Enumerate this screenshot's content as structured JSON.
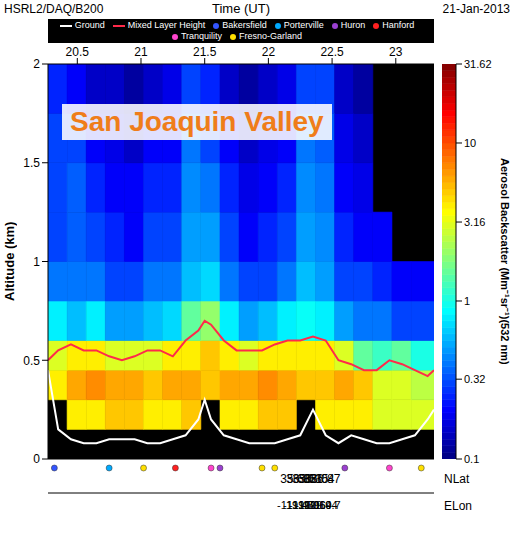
{
  "chart_data": {
    "type": "heatmap",
    "title": "San Joaquin Valley",
    "instrument": "HSRL2/DAQ/B200",
    "date": "21-Jan-2013",
    "xlabel": "Time (UT)",
    "ylabel": "Altitude (km)",
    "xlim": [
      20.27,
      23.3
    ],
    "xticks": [
      20.5,
      21,
      21.5,
      22,
      22.5,
      23
    ],
    "ylim": [
      0,
      2
    ],
    "yticks": [
      0,
      0.5,
      1,
      1.5,
      2
    ],
    "lat_label": "NLat",
    "lat": [
      35.68,
      36.82,
      35.51,
      36.35,
      36.04,
      36.87
    ],
    "lon_label": "ELon",
    "lon": [
      -119.47,
      -119.69,
      -119.06,
      -119.64,
      -119.04,
      -119.7
    ],
    "legend": "top",
    "heatmap": {
      "x_edges": [
        20.27,
        20.42,
        20.57,
        20.72,
        20.87,
        21.02,
        21.17,
        21.32,
        21.47,
        21.62,
        21.77,
        21.92,
        22.07,
        22.22,
        22.37,
        22.52,
        22.67,
        22.82,
        22.97,
        23.12,
        23.3
      ],
      "y_edges": [
        0,
        0.15,
        0.3,
        0.45,
        0.6,
        0.8,
        1.0,
        1.25,
        1.5,
        1.75,
        2.0
      ],
      "values": [
        [
          null,
          null,
          null,
          null,
          null,
          null,
          null,
          null,
          null,
          null,
          null,
          null,
          null,
          null,
          null,
          null,
          null,
          null,
          null,
          null
        ],
        [
          null,
          4,
          4,
          5,
          5,
          4,
          4,
          5,
          null,
          4,
          4,
          5,
          5,
          null,
          4,
          4,
          4,
          3,
          3,
          3
        ],
        [
          4,
          6,
          7,
          6,
          6,
          5,
          6,
          6,
          5,
          6,
          6,
          7,
          6,
          5,
          5,
          6,
          5,
          3,
          3,
          2.5
        ],
        [
          3,
          4,
          4,
          3,
          3,
          3,
          4,
          4,
          5,
          4,
          3,
          4,
          4,
          4,
          4,
          3,
          1.5,
          1.2,
          1.5,
          1
        ],
        [
          0.8,
          0.6,
          0.8,
          0.5,
          0.5,
          0.6,
          0.7,
          1.5,
          2,
          0.8,
          0.5,
          0.6,
          0.8,
          0.9,
          0.8,
          0.5,
          0.4,
          0.4,
          0.3,
          0.3
        ],
        [
          0.4,
          0.4,
          0.4,
          0.3,
          0.3,
          0.4,
          0.4,
          0.6,
          0.7,
          0.4,
          0.3,
          0.3,
          0.4,
          0.6,
          0.5,
          0.3,
          0.3,
          0.25,
          0.2,
          0.2
        ],
        [
          0.3,
          0.35,
          0.3,
          0.25,
          0.2,
          0.3,
          0.3,
          0.5,
          0.5,
          0.3,
          0.2,
          0.25,
          0.3,
          0.5,
          0.45,
          0.25,
          0.2,
          0.2,
          null,
          null
        ],
        [
          0.3,
          0.35,
          0.25,
          0.2,
          0.2,
          0.25,
          0.25,
          0.45,
          0.4,
          0.25,
          0.18,
          0.2,
          0.25,
          0.45,
          0.4,
          0.2,
          0.18,
          null,
          null,
          null
        ],
        [
          0.3,
          0.3,
          0.2,
          0.18,
          0.15,
          0.2,
          0.2,
          0.4,
          0.3,
          0.2,
          0.15,
          0.18,
          0.2,
          0.4,
          0.35,
          0.18,
          0.15,
          null,
          null,
          null
        ],
        [
          0.25,
          0.2,
          0.15,
          0.15,
          0.12,
          0.15,
          0.18,
          0.3,
          0.25,
          0.15,
          0.12,
          0.15,
          0.18,
          0.3,
          0.3,
          0.15,
          0.12,
          null,
          null,
          null
        ]
      ]
    },
    "colorbar": {
      "label": "Aerosol Backscatter (Mm⁻¹sr⁻¹)(532 nm)",
      "range": [
        0.1,
        31.62
      ],
      "ticks": [
        0.1,
        0.32,
        1,
        3.16,
        10,
        31.62
      ],
      "log": true
    },
    "x": [
      20.27,
      20.35,
      20.45,
      20.55,
      20.65,
      20.75,
      20.85,
      20.95,
      21.05,
      21.15,
      21.25,
      21.35,
      21.45,
      21.5,
      21.55,
      21.65,
      21.75,
      21.85,
      21.95,
      22.05,
      22.15,
      22.25,
      22.35,
      22.45,
      22.55,
      22.65,
      22.75,
      22.85,
      22.95,
      23.05,
      23.15,
      23.25,
      23.3
    ],
    "series": [
      {
        "name": "Ground",
        "type": "line",
        "color": "#ffffff",
        "values": [
          0.45,
          0.15,
          0.1,
          0.08,
          0.08,
          0.1,
          0.1,
          0.1,
          0.08,
          0.08,
          0.1,
          0.12,
          0.2,
          0.3,
          0.2,
          0.12,
          0.1,
          0.08,
          0.08,
          0.08,
          0.1,
          0.12,
          0.25,
          0.12,
          0.08,
          0.12,
          0.1,
          0.08,
          0.08,
          0.1,
          0.12,
          0.2,
          0.25
        ]
      },
      {
        "name": "Mixed Layer Height",
        "type": "line",
        "color": "#ff2a4a",
        "values": [
          0.5,
          0.55,
          0.58,
          0.55,
          0.55,
          0.52,
          0.5,
          0.52,
          0.55,
          0.55,
          0.52,
          0.6,
          0.65,
          0.7,
          0.68,
          0.6,
          0.55,
          0.55,
          0.55,
          0.58,
          0.6,
          0.6,
          0.62,
          0.6,
          0.5,
          0.48,
          0.45,
          0.45,
          0.5,
          0.48,
          0.45,
          0.42,
          0.45
        ]
      }
    ],
    "sites": [
      {
        "name": "Bakersfield",
        "color": "#3355ff",
        "times": [
          20.32
        ]
      },
      {
        "name": "Porterville",
        "color": "#00aaff",
        "times": [
          20.75
        ]
      },
      {
        "name": "Huron",
        "color": "#9b40d0",
        "times": [
          21.62,
          22.6
        ]
      },
      {
        "name": "Hanford",
        "color": "#ff2020",
        "times": [
          21.27
        ]
      },
      {
        "name": "Tranquility",
        "color": "#ff44cc",
        "times": [
          21.55,
          22.95
        ]
      },
      {
        "name": "Fresno-Garland",
        "color": "#ffe000",
        "times": [
          21.02,
          21.95,
          22.05,
          23.2
        ]
      }
    ]
  }
}
